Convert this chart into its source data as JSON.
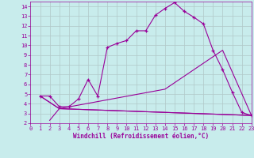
{
  "xlabel": "Windchill (Refroidissement éolien,°C)",
  "xlim": [
    0,
    23
  ],
  "ylim": [
    2,
    14.5
  ],
  "yticks": [
    2,
    3,
    4,
    5,
    6,
    7,
    8,
    9,
    10,
    11,
    12,
    13,
    14
  ],
  "xticks": [
    0,
    1,
    2,
    3,
    4,
    5,
    6,
    7,
    8,
    9,
    10,
    11,
    12,
    13,
    14,
    15,
    16,
    17,
    18,
    19,
    20,
    21,
    22,
    23
  ],
  "bg_color": "#c8ecec",
  "line_color": "#990099",
  "grid_color": "#b0c8c8",
  "curves": [
    {
      "x": [
        1,
        2,
        3,
        4,
        5,
        6,
        7,
        8,
        9,
        10,
        11,
        12,
        13,
        14,
        15,
        16,
        17,
        18,
        19,
        20,
        21,
        22,
        23
      ],
      "y": [
        4.8,
        4.8,
        3.7,
        3.7,
        4.5,
        6.5,
        4.8,
        9.8,
        10.2,
        10.5,
        11.5,
        11.5,
        13.1,
        13.8,
        14.4,
        13.5,
        12.9,
        12.2,
        9.5,
        7.5,
        5.2,
        3.1,
        2.8
      ],
      "marker": "+"
    },
    {
      "x": [
        1,
        3,
        14,
        20,
        23
      ],
      "y": [
        4.8,
        3.5,
        5.5,
        9.5,
        2.8
      ],
      "marker": "none"
    },
    {
      "x": [
        1,
        3,
        23
      ],
      "y": [
        4.8,
        3.5,
        2.8
      ],
      "marker": "none"
    },
    {
      "x": [
        2,
        3,
        23
      ],
      "y": [
        2.3,
        3.5,
        2.8
      ],
      "marker": "none"
    }
  ]
}
